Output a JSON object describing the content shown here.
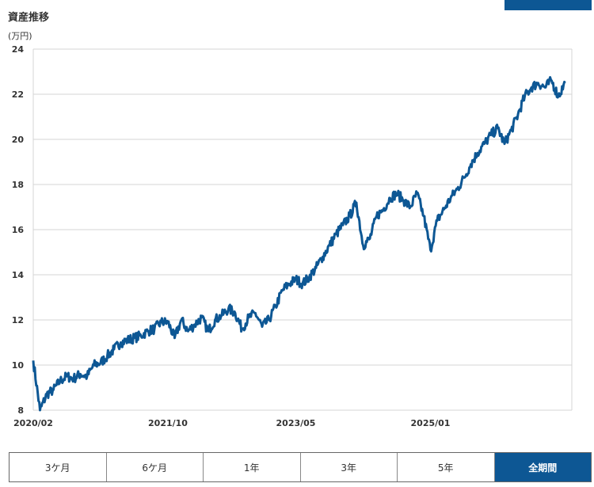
{
  "header": {
    "title": "資産推移",
    "unit": "(万円)"
  },
  "colors": {
    "line": "#0d5794",
    "grid": "#d4d4d4",
    "active_button": "#0d5794"
  },
  "periods": [
    {
      "label": "3ケ月",
      "active": false
    },
    {
      "label": "6ケ月",
      "active": false
    },
    {
      "label": "1年",
      "active": false
    },
    {
      "label": "3年",
      "active": false
    },
    {
      "label": "5年",
      "active": false
    },
    {
      "label": "全期間",
      "active": true
    }
  ],
  "chart_data": {
    "type": "line",
    "title": "資産推移",
    "ylabel": "(万円)",
    "xlabel": "",
    "ylim": [
      8,
      24
    ],
    "yticks": [
      8,
      10,
      12,
      14,
      16,
      18,
      20,
      22,
      24
    ],
    "xlim": [
      "2020-02",
      "2026-10"
    ],
    "xticks": [
      "2020/02",
      "2021/10",
      "2023/05",
      "2025/01"
    ],
    "grid": true,
    "series": [
      {
        "x": [
          "2020-02",
          "2020-03",
          "2020-04",
          "2020-05",
          "2020-06",
          "2020-07",
          "2020-08",
          "2020-09",
          "2020-10",
          "2020-11",
          "2020-12",
          "2021-01",
          "2021-02",
          "2021-03",
          "2021-04",
          "2021-05",
          "2021-06",
          "2021-07",
          "2021-08",
          "2021-09",
          "2021-10",
          "2021-11",
          "2021-12",
          "2022-01",
          "2022-02",
          "2022-03",
          "2022-04",
          "2022-05",
          "2022-06",
          "2022-07",
          "2022-08",
          "2022-09",
          "2022-10",
          "2022-11",
          "2022-12",
          "2023-01",
          "2023-02",
          "2023-03",
          "2023-04",
          "2023-05",
          "2023-06",
          "2023-07",
          "2023-08",
          "2023-09",
          "2023-10",
          "2023-11",
          "2023-12",
          "2024-01",
          "2024-02",
          "2024-03",
          "2024-04",
          "2024-05",
          "2024-06",
          "2024-07",
          "2024-08",
          "2024-09",
          "2024-10",
          "2024-11",
          "2024-12",
          "2025-01",
          "2025-02",
          "2025-03",
          "2025-04",
          "2025-05",
          "2025-06",
          "2025-07",
          "2025-08",
          "2025-09",
          "2025-10",
          "2025-11",
          "2025-12",
          "2026-01",
          "2026-02",
          "2026-03",
          "2026-04",
          "2026-05",
          "2026-06",
          "2026-07",
          "2026-08",
          "2026-09"
        ],
        "values": [
          10.2,
          8.0,
          8.7,
          8.9,
          9.3,
          9.5,
          9.4,
          9.6,
          9.5,
          10.0,
          10.1,
          10.4,
          10.7,
          11.0,
          11.1,
          11.2,
          11.3,
          11.5,
          11.6,
          11.9,
          11.9,
          11.2,
          12.0,
          11.5,
          11.8,
          12.1,
          11.5,
          12.0,
          12.2,
          12.5,
          12.3,
          11.6,
          12.1,
          12.3,
          11.7,
          12.0,
          12.6,
          13.3,
          13.6,
          13.8,
          13.6,
          13.9,
          14.3,
          14.8,
          15.3,
          15.8,
          16.2,
          16.6,
          17.2,
          15.3,
          15.6,
          16.6,
          16.9,
          17.4,
          17.6,
          17.3,
          17.0,
          17.6,
          16.6,
          15.1,
          16.4,
          16.9,
          17.4,
          17.8,
          18.3,
          18.9,
          19.4,
          19.8,
          20.2,
          20.5,
          19.8,
          20.4,
          21.1,
          21.9,
          22.3,
          22.5,
          22.3,
          22.6,
          21.9,
          22.5
        ]
      }
    ]
  }
}
